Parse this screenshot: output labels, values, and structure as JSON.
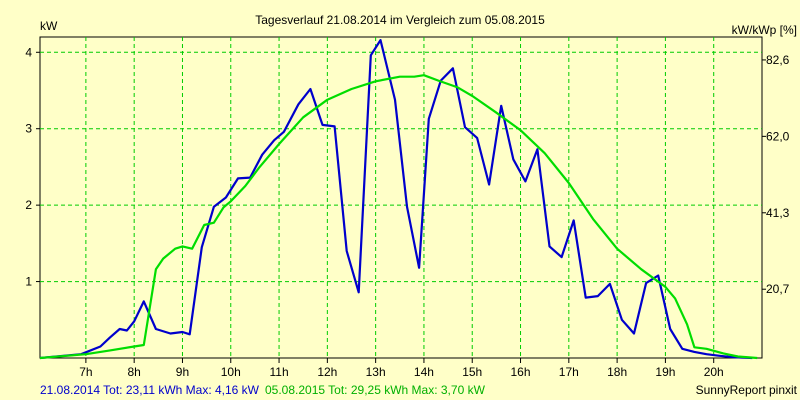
{
  "chart_data": {
    "type": "line",
    "title": "Tagesverlauf 21.08.2014 im Vergleich zum 05.08.2015",
    "ylabel_left": "kW",
    "ylabel_right": "kW/kWp [%]",
    "x_range": [
      6.05,
      21.0
    ],
    "ylim": [
      0,
      4.2
    ],
    "x_ticks": [
      {
        "value": 7,
        "label": "7h"
      },
      {
        "value": 8,
        "label": "8h"
      },
      {
        "value": 9,
        "label": "9h"
      },
      {
        "value": 10,
        "label": "10h"
      },
      {
        "value": 11,
        "label": "11h"
      },
      {
        "value": 12,
        "label": "12h"
      },
      {
        "value": 13,
        "label": "13h"
      },
      {
        "value": 14,
        "label": "14h"
      },
      {
        "value": 15,
        "label": "15h"
      },
      {
        "value": 16,
        "label": "16h"
      },
      {
        "value": 17,
        "label": "17h"
      },
      {
        "value": 18,
        "label": "18h"
      },
      {
        "value": 19,
        "label": "19h"
      },
      {
        "value": 20,
        "label": "20h"
      }
    ],
    "y_ticks_left": [
      {
        "value": 1,
        "label": "1"
      },
      {
        "value": 2,
        "label": "2"
      },
      {
        "value": 3,
        "label": "3"
      },
      {
        "value": 4,
        "label": "4"
      }
    ],
    "y_ticks_right": [
      {
        "value": 0.9,
        "label": "20,7"
      },
      {
        "value": 1.9,
        "label": "41,3"
      },
      {
        "value": 2.9,
        "label": "62,0"
      },
      {
        "value": 3.9,
        "label": "82,6"
      }
    ],
    "grid": true,
    "colors": {
      "background": "#ffffc8",
      "grid": "#00cc00",
      "series_2014": "#0000cc",
      "series_2015": "#00dd00",
      "axis": "#000000"
    },
    "series": [
      {
        "name": "21.08.2014",
        "color": "#0000cc",
        "points": [
          [
            6.05,
            0.0
          ],
          [
            6.9,
            0.05
          ],
          [
            7.3,
            0.15
          ],
          [
            7.5,
            0.27
          ],
          [
            7.7,
            0.38
          ],
          [
            7.85,
            0.36
          ],
          [
            8.0,
            0.48
          ],
          [
            8.2,
            0.74
          ],
          [
            8.45,
            0.38
          ],
          [
            8.75,
            0.32
          ],
          [
            9.0,
            0.34
          ],
          [
            9.15,
            0.31
          ],
          [
            9.4,
            1.45
          ],
          [
            9.65,
            1.98
          ],
          [
            9.9,
            2.1
          ],
          [
            10.15,
            2.35
          ],
          [
            10.4,
            2.36
          ],
          [
            10.65,
            2.66
          ],
          [
            10.9,
            2.85
          ],
          [
            11.1,
            2.96
          ],
          [
            11.4,
            3.32
          ],
          [
            11.65,
            3.52
          ],
          [
            11.9,
            3.05
          ],
          [
            12.15,
            3.03
          ],
          [
            12.4,
            1.4
          ],
          [
            12.65,
            0.86
          ],
          [
            12.9,
            3.96
          ],
          [
            13.1,
            4.16
          ],
          [
            13.4,
            3.38
          ],
          [
            13.65,
            1.98
          ],
          [
            13.9,
            1.18
          ],
          [
            14.1,
            3.13
          ],
          [
            14.35,
            3.63
          ],
          [
            14.6,
            3.79
          ],
          [
            14.85,
            3.02
          ],
          [
            15.1,
            2.88
          ],
          [
            15.35,
            2.27
          ],
          [
            15.6,
            3.3
          ],
          [
            15.85,
            2.6
          ],
          [
            16.1,
            2.31
          ],
          [
            16.35,
            2.73
          ],
          [
            16.6,
            1.46
          ],
          [
            16.85,
            1.32
          ],
          [
            17.1,
            1.8
          ],
          [
            17.35,
            0.79
          ],
          [
            17.6,
            0.81
          ],
          [
            17.85,
            0.97
          ],
          [
            18.1,
            0.5
          ],
          [
            18.35,
            0.32
          ],
          [
            18.6,
            0.98
          ],
          [
            18.85,
            1.08
          ],
          [
            19.1,
            0.38
          ],
          [
            19.35,
            0.12
          ],
          [
            19.6,
            0.08
          ],
          [
            19.85,
            0.05
          ],
          [
            20.1,
            0.03
          ],
          [
            20.4,
            0.01
          ],
          [
            20.8,
            0.0
          ]
        ]
      },
      {
        "name": "05.08.2015",
        "color": "#00dd00",
        "points": [
          [
            6.05,
            0.0
          ],
          [
            7.0,
            0.05
          ],
          [
            7.5,
            0.1
          ],
          [
            8.0,
            0.15
          ],
          [
            8.2,
            0.17
          ],
          [
            8.45,
            1.16
          ],
          [
            8.6,
            1.3
          ],
          [
            8.85,
            1.43
          ],
          [
            9.0,
            1.46
          ],
          [
            9.2,
            1.43
          ],
          [
            9.45,
            1.74
          ],
          [
            9.65,
            1.77
          ],
          [
            9.85,
            1.97
          ],
          [
            10.0,
            2.05
          ],
          [
            10.3,
            2.25
          ],
          [
            10.6,
            2.5
          ],
          [
            11.0,
            2.8
          ],
          [
            11.5,
            3.15
          ],
          [
            12.0,
            3.38
          ],
          [
            12.5,
            3.52
          ],
          [
            13.0,
            3.62
          ],
          [
            13.5,
            3.68
          ],
          [
            13.8,
            3.68
          ],
          [
            14.0,
            3.7
          ],
          [
            14.3,
            3.63
          ],
          [
            14.7,
            3.54
          ],
          [
            15.0,
            3.43
          ],
          [
            15.5,
            3.21
          ],
          [
            16.0,
            2.98
          ],
          [
            16.5,
            2.68
          ],
          [
            17.0,
            2.29
          ],
          [
            17.5,
            1.82
          ],
          [
            18.0,
            1.43
          ],
          [
            18.5,
            1.16
          ],
          [
            19.0,
            0.93
          ],
          [
            19.2,
            0.78
          ],
          [
            19.45,
            0.44
          ],
          [
            19.6,
            0.14
          ],
          [
            19.85,
            0.12
          ],
          [
            20.2,
            0.06
          ],
          [
            20.5,
            0.02
          ],
          [
            20.9,
            0.0
          ]
        ]
      }
    ],
    "footer": {
      "s2014_text": "21.08.2014 Tot: 23,11 kWh Max: 4,16 kW",
      "s2015_text": "05.08.2015 Tot: 29,25 kWh Max: 3,70 kW",
      "credit": "SunnyReport pinxit"
    }
  }
}
